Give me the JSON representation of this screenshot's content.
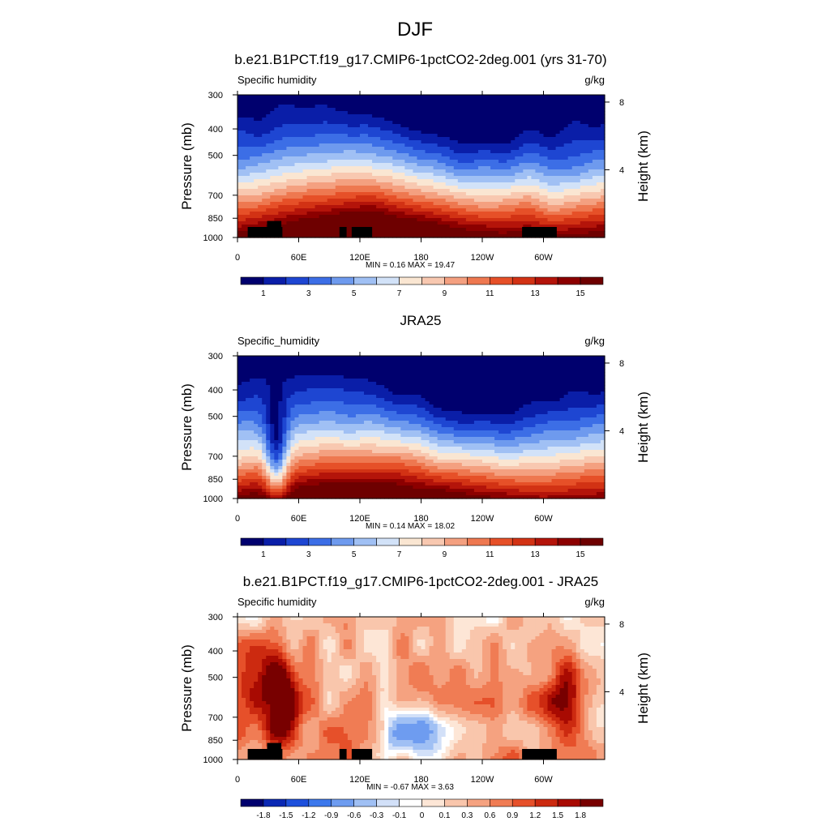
{
  "figure": {
    "title": "DJF"
  },
  "chart_data": [
    {
      "type": "heatmap",
      "title": "b.e21.B1PCT.f19_g17.CMIP6-1pctCO2-2deg.001 (yrs 31-70)",
      "left_label": "Specific humidity",
      "right_label": "g/kg",
      "ylabel": "Pressure (mb)",
      "y2label": "Height (km)",
      "xticks": [
        "0",
        "60E",
        "120E",
        "180",
        "120W",
        "60W"
      ],
      "yticks": [
        "300",
        "400",
        "500",
        "700",
        "850",
        "1000"
      ],
      "y2ticks": [
        "8",
        "4"
      ],
      "stats_text": "MIN =   0.16  MAX =  19.47",
      "colorbar_labels": [
        "1",
        "3",
        "5",
        "7",
        "9",
        "11",
        "13",
        "15"
      ],
      "colorbar_colors": [
        "#00006e",
        "#0a1ea8",
        "#1e46d2",
        "#3c6ee6",
        "#6e9aee",
        "#a0c0f4",
        "#d2e2f8",
        "#fae6d2",
        "#f8c8b0",
        "#f4a080",
        "#ee7850",
        "#e65028",
        "#d23214",
        "#b4140a",
        "#8c0000",
        "#6e0000"
      ],
      "xlim": [
        0,
        360
      ],
      "ylim_mb": [
        300,
        1000
      ],
      "y_log": true,
      "topography": true,
      "data_range": [
        0.16,
        19.47
      ]
    },
    {
      "type": "heatmap",
      "title": "JRA25",
      "left_label": "Specific_humidity",
      "right_label": "g/kg",
      "ylabel": "Pressure (mb)",
      "y2label": "Height (km)",
      "xticks": [
        "0",
        "60E",
        "120E",
        "180",
        "120W",
        "60W"
      ],
      "yticks": [
        "300",
        "400",
        "500",
        "700",
        "850",
        "1000"
      ],
      "y2ticks": [
        "8",
        "4"
      ],
      "stats_text": "MIN =   0.14  MAX =  18.02",
      "colorbar_labels": [
        "1",
        "3",
        "5",
        "7",
        "9",
        "11",
        "13",
        "15"
      ],
      "colorbar_colors": [
        "#00006e",
        "#0a1ea8",
        "#1e46d2",
        "#3c6ee6",
        "#6e9aee",
        "#a0c0f4",
        "#d2e2f8",
        "#fae6d2",
        "#f8c8b0",
        "#f4a080",
        "#ee7850",
        "#e65028",
        "#d23214",
        "#b4140a",
        "#8c0000",
        "#6e0000"
      ],
      "xlim": [
        0,
        360
      ],
      "ylim_mb": [
        300,
        1000
      ],
      "y_log": true,
      "topography": false,
      "data_range": [
        0.14,
        18.02
      ]
    },
    {
      "type": "heatmap",
      "title": "b.e21.B1PCT.f19_g17.CMIP6-1pctCO2-2deg.001 - JRA25",
      "left_label": "Specific humidity",
      "right_label": "g/kg",
      "ylabel": "Pressure (mb)",
      "y2label": "Height (km)",
      "xticks": [
        "0",
        "60E",
        "120E",
        "180",
        "120W",
        "60W"
      ],
      "yticks": [
        "300",
        "400",
        "500",
        "700",
        "850",
        "1000"
      ],
      "y2ticks": [
        "8",
        "4"
      ],
      "stats_text": "MIN =  -0.67  MAX =   3.63",
      "colorbar_labels": [
        "-1.8",
        "-1.5",
        "-1.2",
        "-0.9",
        "-0.6",
        "-0.3",
        "-0.1",
        "0",
        "0.1",
        "0.3",
        "0.6",
        "0.9",
        "1.2",
        "1.5",
        "1.8"
      ],
      "colorbar_colors": [
        "#00006e",
        "#0a28b4",
        "#1e50dc",
        "#3c78ec",
        "#6e9cf0",
        "#a0c0f4",
        "#d2e0f8",
        "#ffffff",
        "#fde6d6",
        "#f9c6ac",
        "#f5a280",
        "#f07c54",
        "#e6502a",
        "#cc2a10",
        "#a80a02",
        "#780000"
      ],
      "xlim": [
        0,
        360
      ],
      "ylim_mb": [
        300,
        1000
      ],
      "y_log": true,
      "topography": true,
      "data_range": [
        -0.67,
        3.63
      ]
    }
  ]
}
